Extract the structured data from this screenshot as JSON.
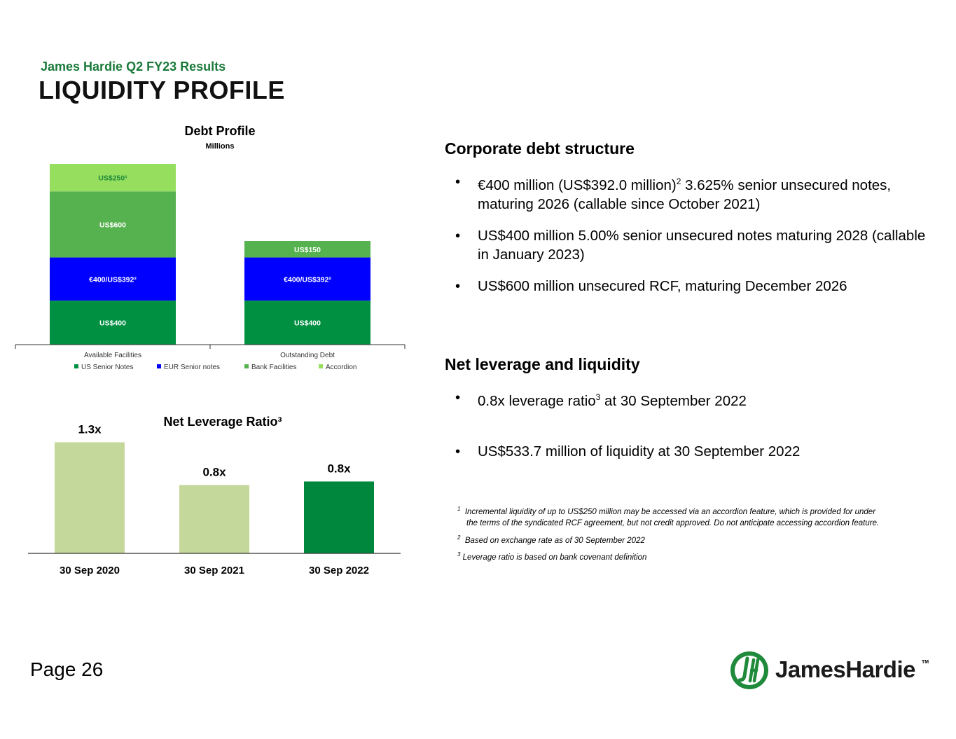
{
  "header": {
    "subtitle": "James Hardie Q2 FY23 Results",
    "title": "LIQUIDITY PROFILE"
  },
  "colors": {
    "us_notes": "#009042",
    "eur_notes": "#0000ff",
    "bank": "#56b14f",
    "accordion": "#96de5e",
    "lev_light": "#c5d89b",
    "lev_dark": "#00873e"
  },
  "chart_data": [
    {
      "type": "bar",
      "stacked": true,
      "title": "Debt Profile",
      "subtitle": "Millions",
      "categories": [
        "Available Facilities",
        "Outstanding Debt"
      ],
      "series": [
        {
          "name": "US Senior Notes",
          "values": [
            400,
            400
          ],
          "labels": [
            "US$400",
            "US$400"
          ]
        },
        {
          "name": "EUR Senior notes",
          "values": [
            392,
            392
          ],
          "labels": [
            "€400/US$392²",
            "€400/US$392²"
          ]
        },
        {
          "name": "Bank Facilities",
          "values": [
            600,
            150
          ],
          "labels": [
            "US$600",
            "US$150"
          ]
        },
        {
          "name": "Accordion",
          "values": [
            250,
            0
          ],
          "labels": [
            "US$250¹",
            ""
          ]
        }
      ],
      "legend": [
        "US Senior Notes",
        "EUR Senior notes",
        "Bank Facilities",
        "Accordion"
      ],
      "legend_position": "bottom"
    },
    {
      "type": "bar",
      "title": "Net Leverage Ratio³",
      "categories": [
        "30 Sep 2020",
        "30 Sep 2021",
        "30 Sep 2022"
      ],
      "values": [
        1.3,
        0.8,
        0.8
      ],
      "data_labels": [
        "1.3x",
        "0.8x",
        "0.8x"
      ]
    }
  ],
  "corporate": {
    "heading": "Corporate debt structure",
    "b1_pre": "€400 million (US$392.0 million)",
    "b1_sup": "2",
    "b1_post": " 3.625% senior unsecured notes, maturing 2026 (callable since October 2021)",
    "b2": "US$400 million 5.00% senior unsecured notes maturing 2028 (callable in January 2023)",
    "b3": "US$600 million unsecured RCF, maturing December 2026"
  },
  "leverage": {
    "heading": "Net leverage and liquidity",
    "b1_pre": "0.8x leverage ratio",
    "b1_sup": "3",
    "b1_post": " at 30 September 2022",
    "b2": "US$533.7 million of liquidity at 30 September 2022"
  },
  "footnotes": {
    "f1_num": "1",
    "f1_line1": "Incremental liquidity of up to US$250 million may be accessed via an accordion feature,  which is provided for under",
    "f1_line2": "the terms of the syndicated RCF agreement, but not credit approved.  Do not anticipate accessing accordion feature.",
    "f2_num": "2",
    "f2": "Based on exchange rate as of 30 September 2022",
    "f3_num": "3",
    "f3": "Leverage ratio is based on bank covenant definition"
  },
  "footer": {
    "page": "Page 26",
    "logo_text": "JamesHardie",
    "logo_tm": "TM"
  }
}
